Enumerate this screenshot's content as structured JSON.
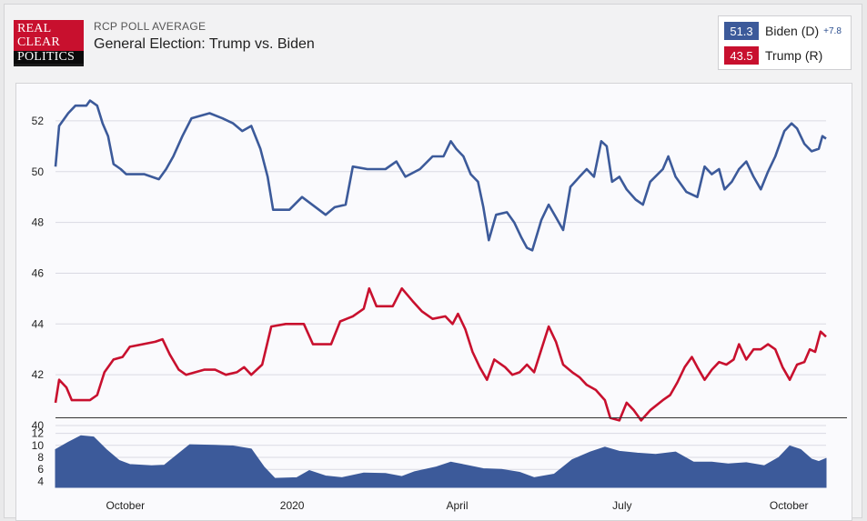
{
  "logo": {
    "line1": "REAL",
    "line2": "CLEAR",
    "line3": "POLITICS"
  },
  "header": {
    "subtitle": "RCP POLL AVERAGE",
    "title": "General Election: Trump vs. Biden"
  },
  "legend": {
    "items": [
      {
        "value": "51.3",
        "name": "Biden (D)",
        "spread": "+7.8",
        "color": "#3c5a9a"
      },
      {
        "value": "43.5",
        "name": "Trump (R)",
        "spread": "",
        "color": "#c8102e"
      }
    ]
  },
  "chart_data": {
    "type": "line",
    "title": "General Election: Trump vs. Biden",
    "x_axis": {
      "range": [
        "2019-09-01",
        "2020-10-30"
      ],
      "tick_labels": [
        "October",
        "2020",
        "April",
        "July",
        "October"
      ],
      "tick_dates": [
        "2019-10-01",
        "2020-01-01",
        "2020-04-01",
        "2020-07-01",
        "2020-10-01"
      ]
    },
    "y_axis": {
      "range": [
        40,
        53
      ],
      "ticks": [
        40,
        42,
        44,
        46,
        48,
        50,
        52
      ]
    },
    "grid": true,
    "legend_position": "top-right",
    "series": [
      {
        "name": "Biden (D)",
        "color": "#3c5a9a",
        "points": [
          [
            "2019-09-01",
            50.2
          ],
          [
            "2019-09-03",
            51.8
          ],
          [
            "2019-09-08",
            52.3
          ],
          [
            "2019-09-12",
            52.6
          ],
          [
            "2019-09-18",
            52.6
          ],
          [
            "2019-09-20",
            52.8
          ],
          [
            "2019-09-24",
            52.6
          ],
          [
            "2019-09-27",
            51.9
          ],
          [
            "2019-09-30",
            51.4
          ],
          [
            "2019-10-03",
            50.3
          ],
          [
            "2019-10-07",
            50.1
          ],
          [
            "2019-10-10",
            49.9
          ],
          [
            "2019-10-20",
            49.9
          ],
          [
            "2019-10-28",
            49.7
          ],
          [
            "2019-11-01",
            50.1
          ],
          [
            "2019-11-05",
            50.6
          ],
          [
            "2019-11-10",
            51.4
          ],
          [
            "2019-11-15",
            52.1
          ],
          [
            "2019-11-25",
            52.3
          ],
          [
            "2019-12-02",
            52.1
          ],
          [
            "2019-12-08",
            51.9
          ],
          [
            "2019-12-13",
            51.6
          ],
          [
            "2019-12-18",
            51.8
          ],
          [
            "2019-12-23",
            50.9
          ],
          [
            "2019-12-27",
            49.8
          ],
          [
            "2019-12-30",
            48.5
          ],
          [
            "2020-01-08",
            48.5
          ],
          [
            "2020-01-15",
            49.0
          ],
          [
            "2020-01-28",
            48.3
          ],
          [
            "2020-02-02",
            48.6
          ],
          [
            "2020-02-08",
            48.7
          ],
          [
            "2020-02-12",
            50.2
          ],
          [
            "2020-02-20",
            50.1
          ],
          [
            "2020-03-01",
            50.1
          ],
          [
            "2020-03-07",
            50.4
          ],
          [
            "2020-03-12",
            49.8
          ],
          [
            "2020-03-20",
            50.1
          ],
          [
            "2020-03-27",
            50.6
          ],
          [
            "2020-04-02",
            50.6
          ],
          [
            "2020-04-06",
            51.2
          ],
          [
            "2020-04-09",
            50.9
          ],
          [
            "2020-04-13",
            50.6
          ],
          [
            "2020-04-17",
            49.9
          ],
          [
            "2020-04-21",
            49.6
          ],
          [
            "2020-04-24",
            48.6
          ],
          [
            "2020-04-27",
            47.3
          ],
          [
            "2020-05-01",
            48.3
          ],
          [
            "2020-05-07",
            48.4
          ],
          [
            "2020-05-11",
            48.0
          ],
          [
            "2020-05-15",
            47.4
          ],
          [
            "2020-05-18",
            47.0
          ],
          [
            "2020-05-21",
            46.9
          ],
          [
            "2020-05-26",
            48.1
          ],
          [
            "2020-05-30",
            48.7
          ],
          [
            "2020-06-03",
            48.2
          ],
          [
            "2020-06-07",
            47.7
          ],
          [
            "2020-06-11",
            49.4
          ],
          [
            "2020-06-16",
            49.8
          ],
          [
            "2020-06-20",
            50.1
          ],
          [
            "2020-06-24",
            49.8
          ],
          [
            "2020-06-28",
            51.2
          ],
          [
            "2020-07-01",
            51.0
          ],
          [
            "2020-07-04",
            49.6
          ],
          [
            "2020-07-08",
            49.8
          ],
          [
            "2020-07-12",
            49.3
          ],
          [
            "2020-07-17",
            48.9
          ],
          [
            "2020-07-21",
            48.7
          ],
          [
            "2020-07-25",
            49.6
          ],
          [
            "2020-08-01",
            50.1
          ],
          [
            "2020-08-04",
            50.6
          ],
          [
            "2020-08-08",
            49.8
          ],
          [
            "2020-08-14",
            49.2
          ],
          [
            "2020-08-20",
            49.0
          ],
          [
            "2020-08-24",
            50.2
          ],
          [
            "2020-08-28",
            49.9
          ],
          [
            "2020-09-01",
            50.1
          ],
          [
            "2020-09-04",
            49.3
          ],
          [
            "2020-09-08",
            49.6
          ],
          [
            "2020-09-12",
            50.1
          ],
          [
            "2020-09-16",
            50.4
          ],
          [
            "2020-09-20",
            49.8
          ],
          [
            "2020-09-24",
            49.3
          ],
          [
            "2020-09-28",
            50.0
          ],
          [
            "2020-10-02",
            50.6
          ],
          [
            "2020-10-07",
            51.6
          ],
          [
            "2020-10-11",
            51.9
          ],
          [
            "2020-10-14",
            51.7
          ],
          [
            "2020-10-18",
            51.1
          ],
          [
            "2020-10-22",
            50.8
          ],
          [
            "2020-10-26",
            50.9
          ],
          [
            "2020-10-28",
            51.4
          ],
          [
            "2020-10-30",
            51.3
          ]
        ]
      },
      {
        "name": "Trump (R)",
        "color": "#c8102e",
        "points": [
          [
            "2019-09-01",
            40.9
          ],
          [
            "2019-09-03",
            41.8
          ],
          [
            "2019-09-07",
            41.5
          ],
          [
            "2019-09-10",
            41.0
          ],
          [
            "2019-09-20",
            41.0
          ],
          [
            "2019-09-24",
            41.2
          ],
          [
            "2019-09-28",
            42.1
          ],
          [
            "2019-10-03",
            42.6
          ],
          [
            "2019-10-08",
            42.7
          ],
          [
            "2019-10-12",
            43.1
          ],
          [
            "2019-10-26",
            43.3
          ],
          [
            "2019-10-30",
            43.4
          ],
          [
            "2019-11-03",
            42.8
          ],
          [
            "2019-11-08",
            42.2
          ],
          [
            "2019-11-12",
            42.0
          ],
          [
            "2019-11-22",
            42.2
          ],
          [
            "2019-11-28",
            42.2
          ],
          [
            "2019-12-04",
            42.0
          ],
          [
            "2019-12-10",
            42.1
          ],
          [
            "2019-12-14",
            42.3
          ],
          [
            "2019-12-18",
            42.0
          ],
          [
            "2019-12-24",
            42.4
          ],
          [
            "2019-12-29",
            43.9
          ],
          [
            "2020-01-06",
            44.0
          ],
          [
            "2020-01-16",
            44.0
          ],
          [
            "2020-01-21",
            43.2
          ],
          [
            "2020-01-31",
            43.2
          ],
          [
            "2020-02-05",
            44.1
          ],
          [
            "2020-02-12",
            44.3
          ],
          [
            "2020-02-18",
            44.6
          ],
          [
            "2020-02-21",
            45.4
          ],
          [
            "2020-02-25",
            44.7
          ],
          [
            "2020-03-05",
            44.7
          ],
          [
            "2020-03-10",
            45.4
          ],
          [
            "2020-03-16",
            44.9
          ],
          [
            "2020-03-21",
            44.5
          ],
          [
            "2020-03-27",
            44.2
          ],
          [
            "2020-04-03",
            44.3
          ],
          [
            "2020-04-07",
            44.0
          ],
          [
            "2020-04-10",
            44.4
          ],
          [
            "2020-04-14",
            43.8
          ],
          [
            "2020-04-18",
            42.9
          ],
          [
            "2020-04-22",
            42.3
          ],
          [
            "2020-04-26",
            41.8
          ],
          [
            "2020-04-30",
            42.6
          ],
          [
            "2020-05-06",
            42.3
          ],
          [
            "2020-05-10",
            42.0
          ],
          [
            "2020-05-14",
            42.1
          ],
          [
            "2020-05-18",
            42.4
          ],
          [
            "2020-05-22",
            42.1
          ],
          [
            "2020-05-26",
            43.0
          ],
          [
            "2020-05-30",
            43.9
          ],
          [
            "2020-06-03",
            43.3
          ],
          [
            "2020-06-07",
            42.4
          ],
          [
            "2020-06-12",
            42.1
          ],
          [
            "2020-06-16",
            41.9
          ],
          [
            "2020-06-20",
            41.6
          ],
          [
            "2020-06-25",
            41.4
          ],
          [
            "2020-06-30",
            41.0
          ],
          [
            "2020-07-03",
            40.3
          ],
          [
            "2020-07-08",
            40.2
          ],
          [
            "2020-07-12",
            40.9
          ],
          [
            "2020-07-16",
            40.6
          ],
          [
            "2020-07-20",
            40.2
          ],
          [
            "2020-07-25",
            40.6
          ],
          [
            "2020-08-01",
            41.0
          ],
          [
            "2020-08-05",
            41.2
          ],
          [
            "2020-08-09",
            41.7
          ],
          [
            "2020-08-13",
            42.3
          ],
          [
            "2020-08-17",
            42.7
          ],
          [
            "2020-08-20",
            42.3
          ],
          [
            "2020-08-24",
            41.8
          ],
          [
            "2020-08-28",
            42.2
          ],
          [
            "2020-09-01",
            42.5
          ],
          [
            "2020-09-05",
            42.4
          ],
          [
            "2020-09-09",
            42.6
          ],
          [
            "2020-09-12",
            43.2
          ],
          [
            "2020-09-16",
            42.6
          ],
          [
            "2020-09-20",
            43.0
          ],
          [
            "2020-09-24",
            43.0
          ],
          [
            "2020-09-28",
            43.2
          ],
          [
            "2020-10-02",
            43.0
          ],
          [
            "2020-10-06",
            42.3
          ],
          [
            "2020-10-10",
            41.8
          ],
          [
            "2020-10-14",
            42.4
          ],
          [
            "2020-10-18",
            42.5
          ],
          [
            "2020-10-21",
            43.0
          ],
          [
            "2020-10-24",
            42.9
          ],
          [
            "2020-10-27",
            43.7
          ],
          [
            "2020-10-30",
            43.5
          ]
        ]
      }
    ],
    "spread_panel": {
      "y_axis": {
        "range": [
          3,
          13
        ],
        "ticks": [
          4,
          6,
          8,
          10,
          12
        ]
      },
      "color": "#3c5a9a",
      "points": [
        [
          "2019-09-01",
          9.3
        ],
        [
          "2019-09-08",
          10.5
        ],
        [
          "2019-09-15",
          11.6
        ],
        [
          "2019-09-22",
          11.4
        ],
        [
          "2019-09-29",
          9.3
        ],
        [
          "2019-10-06",
          7.5
        ],
        [
          "2019-10-12",
          6.8
        ],
        [
          "2019-10-24",
          6.6
        ],
        [
          "2019-10-31",
          6.7
        ],
        [
          "2019-11-07",
          8.4
        ],
        [
          "2019-11-14",
          10.1
        ],
        [
          "2019-11-28",
          10.0
        ],
        [
          "2019-12-08",
          9.9
        ],
        [
          "2019-12-18",
          9.4
        ],
        [
          "2019-12-25",
          6.4
        ],
        [
          "2019-12-31",
          4.5
        ],
        [
          "2020-01-12",
          4.6
        ],
        [
          "2020-01-19",
          5.8
        ],
        [
          "2020-01-28",
          4.9
        ],
        [
          "2020-02-06",
          4.6
        ],
        [
          "2020-02-18",
          5.4
        ],
        [
          "2020-03-01",
          5.3
        ],
        [
          "2020-03-10",
          4.8
        ],
        [
          "2020-03-17",
          5.6
        ],
        [
          "2020-03-29",
          6.4
        ],
        [
          "2020-04-06",
          7.2
        ],
        [
          "2020-04-16",
          6.6
        ],
        [
          "2020-04-24",
          6.1
        ],
        [
          "2020-05-04",
          6.0
        ],
        [
          "2020-05-14",
          5.5
        ],
        [
          "2020-05-22",
          4.6
        ],
        [
          "2020-06-02",
          5.2
        ],
        [
          "2020-06-12",
          7.6
        ],
        [
          "2020-06-22",
          8.9
        ],
        [
          "2020-06-30",
          9.7
        ],
        [
          "2020-07-08",
          9.0
        ],
        [
          "2020-07-18",
          8.7
        ],
        [
          "2020-07-28",
          8.5
        ],
        [
          "2020-08-08",
          8.9
        ],
        [
          "2020-08-18",
          7.2
        ],
        [
          "2020-08-28",
          7.2
        ],
        [
          "2020-09-06",
          6.9
        ],
        [
          "2020-09-16",
          7.1
        ],
        [
          "2020-09-26",
          6.6
        ],
        [
          "2020-10-04",
          8.0
        ],
        [
          "2020-10-10",
          9.9
        ],
        [
          "2020-10-16",
          9.3
        ],
        [
          "2020-10-22",
          7.7
        ],
        [
          "2020-10-26",
          7.3
        ],
        [
          "2020-10-30",
          7.8
        ]
      ]
    }
  }
}
